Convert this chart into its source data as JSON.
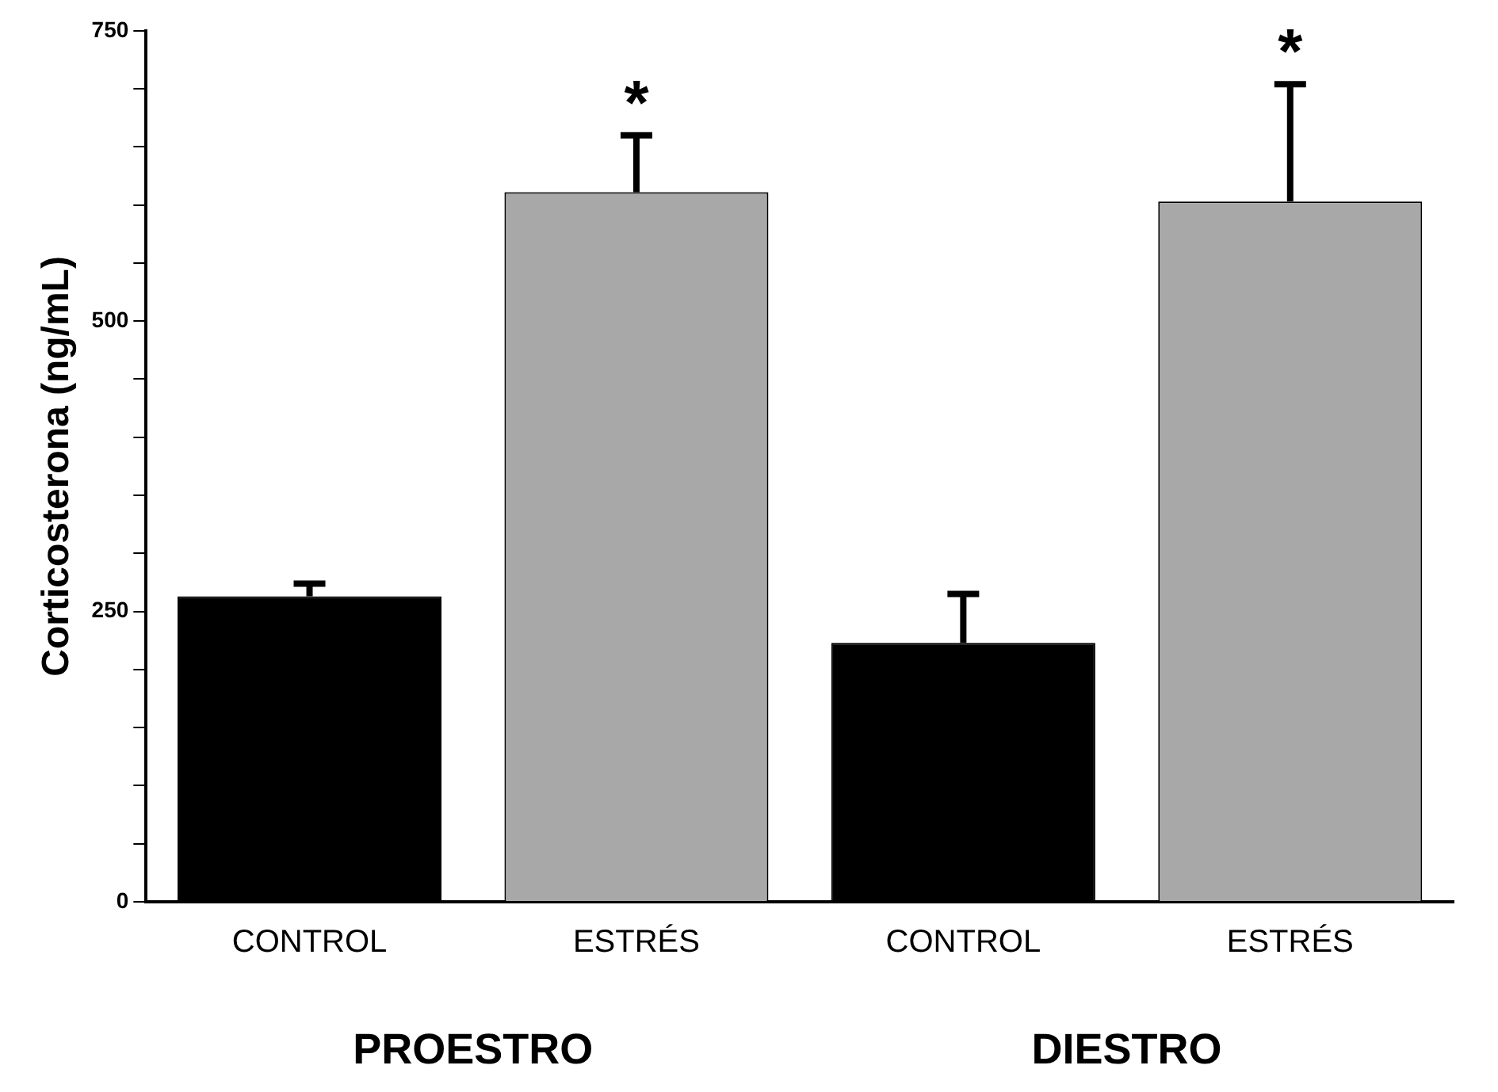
{
  "chart_data": {
    "type": "bar",
    "ylabel": "Corticosterona (ng/mL)",
    "categories": [
      "CONTROL",
      "ESTRÉS",
      "CONTROL",
      "ESTRÉS"
    ],
    "values": [
      263,
      611,
      223,
      603
    ],
    "colors": [
      "#000000",
      "#a8a8a8",
      "#000000",
      "#a8a8a8"
    ],
    "errors": [
      [
        263,
        274
      ],
      [
        611,
        660
      ],
      [
        223,
        265
      ],
      [
        603,
        704
      ]
    ],
    "ylim": [
      0,
      750
    ],
    "yticks": [
      0,
      {
        "value": 50,
        "label": null
      },
      {
        "value": 100,
        "label": null
      },
      {
        "value": 150,
        "label": null
      },
      {
        "value": 200,
        "label": null
      },
      250,
      {
        "value": 300,
        "label": null
      },
      {
        "value": 350,
        "label": null
      },
      {
        "value": 400,
        "label": null
      },
      {
        "value": 450,
        "label": null
      },
      500,
      {
        "value": 550,
        "label": null
      },
      {
        "value": 600,
        "label": null
      },
      {
        "value": 650,
        "label": null
      },
      {
        "value": 700,
        "label": null
      },
      750
    ],
    "grid": false,
    "legend": false,
    "value_labels": [
      null,
      "*",
      null,
      "*"
    ],
    "annotations": [
      "PROESTRO",
      "DIESTRO"
    ]
  }
}
